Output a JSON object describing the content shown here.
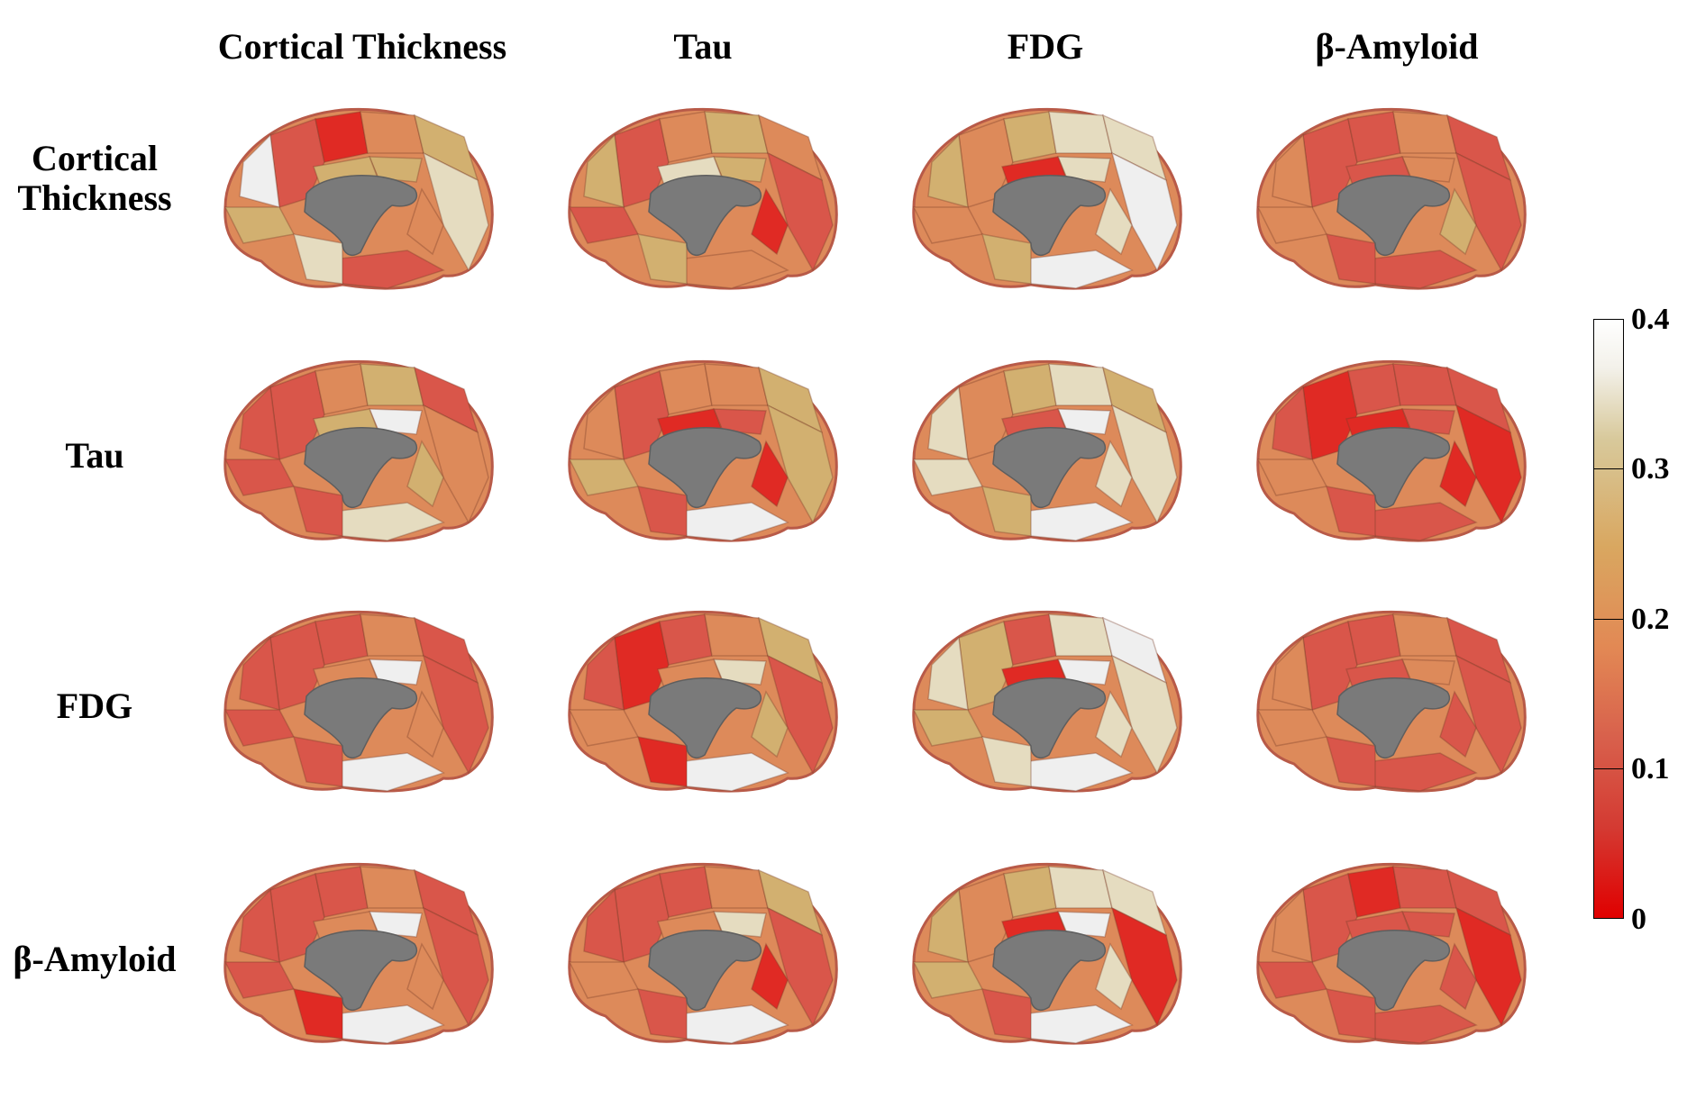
{
  "column_headers": [
    "Cortical Thickness",
    "Tau",
    "FDG",
    "β-Amyloid"
  ],
  "row_headers": [
    [
      "Cortical",
      "Thickness"
    ],
    [
      "Tau"
    ],
    [
      "FDG"
    ],
    [
      "β-Amyloid"
    ]
  ],
  "colorbar": {
    "ticks": [
      "0.4",
      "0.3",
      "0.2",
      "0.1",
      "0"
    ],
    "min": 0,
    "max": 0.4,
    "colors": {
      "low": "#e00000",
      "mid": "#e28854",
      "high": "#ffffff"
    }
  },
  "brains": [
    [
      "c1",
      "c0",
      "c2",
      "c3",
      "c4",
      "c3",
      "c3",
      "c5",
      "c3",
      "c2",
      "c1",
      "c4"
    ],
    [
      "c1",
      "c2",
      "c3",
      "c2",
      "c1",
      "c3",
      "c4",
      "c3",
      "c1",
      "c0",
      "c2",
      "c3"
    ],
    [
      "c2",
      "c3",
      "c4",
      "c4",
      "c5",
      "c4",
      "c0",
      "c3",
      "c2",
      "c4",
      "c5",
      "c3"
    ],
    [
      "c1",
      "c1",
      "c2",
      "c1",
      "c1",
      "c2",
      "c1",
      "c2",
      "c2",
      "c3",
      "c1",
      "c1"
    ],
    [
      "c1",
      "c2",
      "c3",
      "c1",
      "c2",
      "c5",
      "c3",
      "c1",
      "c1",
      "c3",
      "c4",
      "c1"
    ],
    [
      "c1",
      "c2",
      "c2",
      "c3",
      "c3",
      "c1",
      "c0",
      "c2",
      "c3",
      "c0",
      "c5",
      "c1"
    ],
    [
      "c2",
      "c3",
      "c4",
      "c3",
      "c4",
      "c5",
      "c1",
      "c4",
      "c4",
      "c4",
      "c5",
      "c3"
    ],
    [
      "c0",
      "c1",
      "c1",
      "c1",
      "c0",
      "c1",
      "c0",
      "c1",
      "c2",
      "c0",
      "c1",
      "c1"
    ],
    [
      "c1",
      "c1",
      "c2",
      "c1",
      "c1",
      "c5",
      "c2",
      "c1",
      "c1",
      "c2",
      "c5",
      "c1"
    ],
    [
      "c0",
      "c1",
      "c2",
      "c3",
      "c1",
      "c4",
      "c2",
      "c1",
      "c2",
      "c3",
      "c5",
      "c0"
    ],
    [
      "c3",
      "c1",
      "c4",
      "c5",
      "c4",
      "c5",
      "c0",
      "c4",
      "c3",
      "c4",
      "c5",
      "c4"
    ],
    [
      "c1",
      "c1",
      "c2",
      "c1",
      "c1",
      "c2",
      "c1",
      "c2",
      "c2",
      "c1",
      "c1",
      "c1"
    ],
    [
      "c1",
      "c1",
      "c2",
      "c1",
      "c1",
      "c5",
      "c2",
      "c1",
      "c1",
      "c2",
      "c5",
      "c0"
    ],
    [
      "c1",
      "c1",
      "c2",
      "c3",
      "c1",
      "c4",
      "c2",
      "c1",
      "c2",
      "c0",
      "c5",
      "c1"
    ],
    [
      "c2",
      "c3",
      "c4",
      "c4",
      "c0",
      "c5",
      "c0",
      "c3",
      "c3",
      "c4",
      "c5",
      "c1"
    ],
    [
      "c1",
      "c0",
      "c1",
      "c1",
      "c0",
      "c1",
      "c1",
      "c2",
      "c1",
      "c1",
      "c1",
      "c1"
    ]
  ],
  "palette": {
    "c0": "#e02a24",
    "c1": "#d9564a",
    "c2": "#dd8a5a",
    "c3": "#d2b070",
    "c4": "#e5dcc0",
    "c5": "#efefef",
    "core": "#7a7a7a",
    "outline": "#b85a48"
  }
}
